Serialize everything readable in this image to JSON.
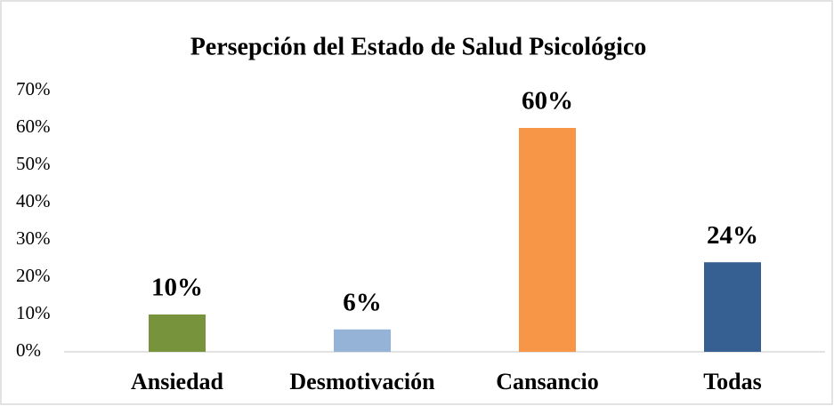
{
  "chart_data": {
    "type": "bar",
    "title": "Persepción del Estado de Salud Psicológico",
    "categories": [
      "Ansiedad",
      "Desmotivación",
      "Cansancio",
      "Todas"
    ],
    "values": [
      10,
      6,
      60,
      24
    ],
    "value_labels": [
      "10%",
      "6%",
      "60%",
      "24%"
    ],
    "colors": [
      "#77933c",
      "#95b3d7",
      "#f79646",
      "#376092"
    ],
    "ylim": [
      0,
      70
    ],
    "yticks": [
      {
        "value": 0,
        "label": "0%"
      },
      {
        "value": 10,
        "label": "10%"
      },
      {
        "value": 20,
        "label": "20%"
      },
      {
        "value": 30,
        "label": "30%"
      },
      {
        "value": 40,
        "label": "40%"
      },
      {
        "value": 50,
        "label": "50%"
      },
      {
        "value": 60,
        "label": "60%"
      },
      {
        "value": 70,
        "label": "70%"
      }
    ],
    "grid": false
  }
}
